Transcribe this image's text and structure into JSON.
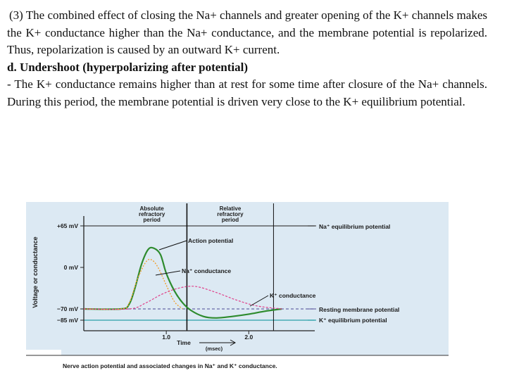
{
  "text": {
    "p1": "(3) The combined effect of closing the Na+ channels and greater opening of the K+ channels makes the K+ conductance higher than the Na+ conductance, and the membrane potential is repolarized. Thus, repolarization is caused by an outward K+ current.",
    "heading": "d. Undershoot (hyperpolarizing after potential)",
    "p2": "- The K+ conductance remains higher than at rest for some time after closure of the Na+ channels. During this period, the membrane potential is driven very close to the K+ equilibrium potential."
  },
  "chart_data": {
    "type": "line",
    "caption": "Nerve action potential and associated changes in Na⁺ and K⁺ conductance.",
    "xlabel": "Time",
    "xunit": "(msec)",
    "ylabel": "Voltage or conductance",
    "x_ticks": [
      "1.0",
      "2.0"
    ],
    "xlim": [
      0,
      2.8
    ],
    "ylim": [
      -95,
      80
    ],
    "y_ticks": [
      {
        "label": "+65 mV",
        "value": 65
      },
      {
        "label": "0 mV",
        "value": 0
      },
      {
        "label": "−70 mV",
        "value": -70
      },
      {
        "label": "−85 mV",
        "value": -85
      }
    ],
    "periods": [
      {
        "label": "Absolute refractory period",
        "x_start": 0.4,
        "x_end": 1.25
      },
      {
        "label": "Relative refractory period",
        "x_end": 2.3
      }
    ],
    "reference_lines": [
      {
        "label": "Na⁺ equilibrium potential",
        "value": 65
      },
      {
        "label": "Resting membrane potential",
        "value": -70
      },
      {
        "label": "K⁺ equilibrium potential",
        "value": -85
      }
    ],
    "series": [
      {
        "name": "Action potential",
        "color": "#2e8b2e",
        "x": [
          0.0,
          0.45,
          0.55,
          0.62,
          0.7,
          0.78,
          0.85,
          0.93,
          1.0,
          1.1,
          1.2,
          1.3,
          1.45,
          1.6,
          1.8,
          2.0,
          2.2,
          2.4
        ],
        "y": [
          -70,
          -70,
          -62,
          -35,
          5,
          28,
          30,
          20,
          -10,
          -40,
          -60,
          -72,
          -80,
          -82,
          -80,
          -77,
          -73,
          -70
        ]
      },
      {
        "name": "Na⁺ conductance",
        "color": "#f0a030",
        "x": [
          0.0,
          0.45,
          0.55,
          0.65,
          0.75,
          0.82,
          0.9,
          1.0,
          1.1,
          1.2
        ],
        "y": [
          -70,
          -70,
          -60,
          -20,
          8,
          12,
          0,
          -30,
          -58,
          -70
        ]
      },
      {
        "name": "K⁺ conductance",
        "color": "#e0408a",
        "x": [
          0.0,
          0.55,
          0.75,
          0.95,
          1.15,
          1.35,
          1.6,
          1.85,
          2.1,
          2.4
        ],
        "y": [
          -70,
          -70,
          -60,
          -45,
          -35,
          -32,
          -42,
          -55,
          -65,
          -70
        ]
      }
    ],
    "annotations": [
      {
        "text": "Action potential",
        "target": "Action potential"
      },
      {
        "text": "Na⁺ conductance",
        "target": "Na⁺ conductance"
      },
      {
        "text": "K⁺ conductance",
        "target": "K⁺ conductance"
      }
    ],
    "colors": {
      "panel": "#dce9f3",
      "axis": "#222222",
      "na_line": "#444444",
      "k_line": "#2aa0a8",
      "rest_line": "#6a6aa8"
    }
  }
}
